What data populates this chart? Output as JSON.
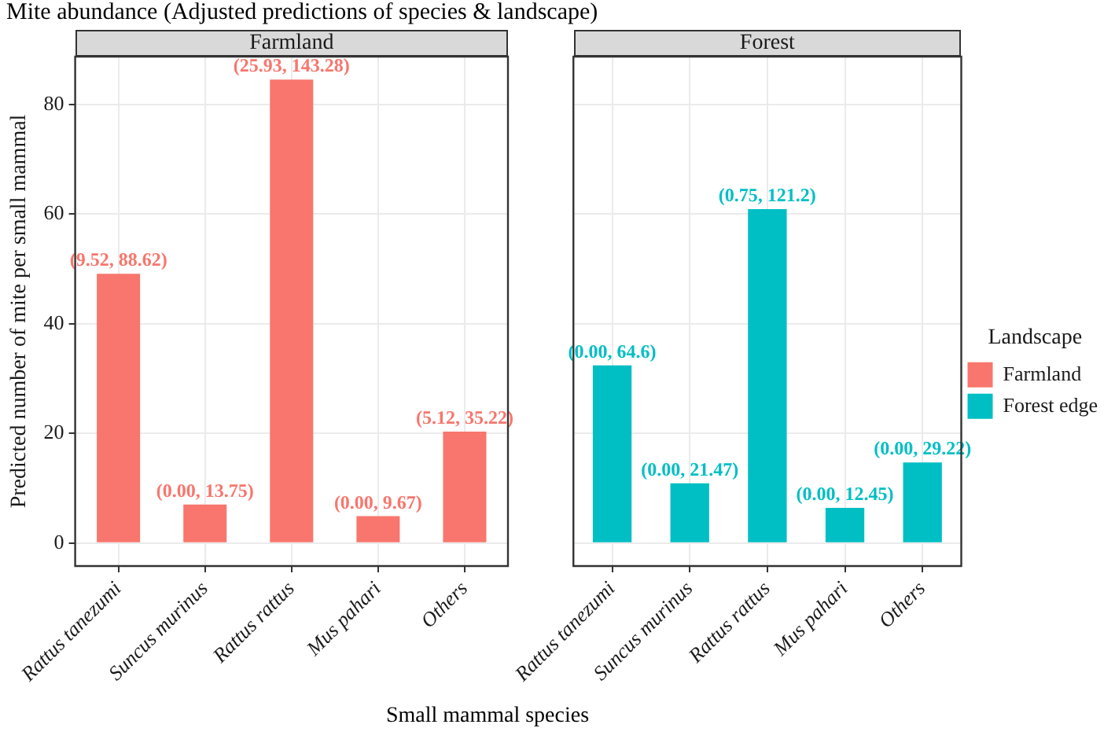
{
  "chart_data": [
    {
      "type": "bar",
      "title": "Mite abundance (Adjusted predictions of species & landscape)",
      "subtitle": "Farmland",
      "xlabel": "Small mammal species",
      "ylabel": "Predicted number of mite per small mammal",
      "categories": [
        "Rattus tanezumi",
        "Suncus murinus",
        "Rattus rattus",
        "Mus pahari",
        "Others"
      ],
      "series": [
        {
          "color": "#f8766d",
          "values": [
            49.1,
            7.0,
            84.5,
            4.9,
            20.3
          ],
          "value_labels": [
            "(9.52, 88.62)",
            "(0.00, 13.75)",
            "(25.93, 143.28)",
            "(0.00, 9.67)",
            "(5.12, 35.22)"
          ]
        }
      ],
      "ylim": [
        -4.2,
        88.7
      ],
      "yticks": [
        0,
        20,
        40,
        60,
        80
      ],
      "grid": true
    },
    {
      "type": "bar",
      "subtitle": "Forest",
      "legend_title": "Landscape",
      "categories": [
        "Rattus tanezumi",
        "Suncus murinus",
        "Rattus rattus",
        "Mus pahari",
        "Others"
      ],
      "series": [
        {
          "name": "Farmland",
          "color": "#f8766d",
          "values": [
            null,
            null,
            null,
            null,
            null
          ]
        },
        {
          "name": "Forest edge",
          "color": "#00bfc4",
          "values": [
            32.4,
            10.9,
            60.9,
            6.4,
            14.7
          ],
          "value_labels": [
            "(0.00, 64.6)",
            "(0.00, 21.47)",
            "(0.75, 121.2)",
            "(0.00, 12.45)",
            "(0.00, 29.22)"
          ]
        }
      ],
      "ylim": [
        -4.2,
        88.7
      ],
      "yticks": [
        0,
        20,
        40,
        60,
        80
      ],
      "grid": true,
      "legend": "right",
      "tick_labels": "x"
    }
  ]
}
